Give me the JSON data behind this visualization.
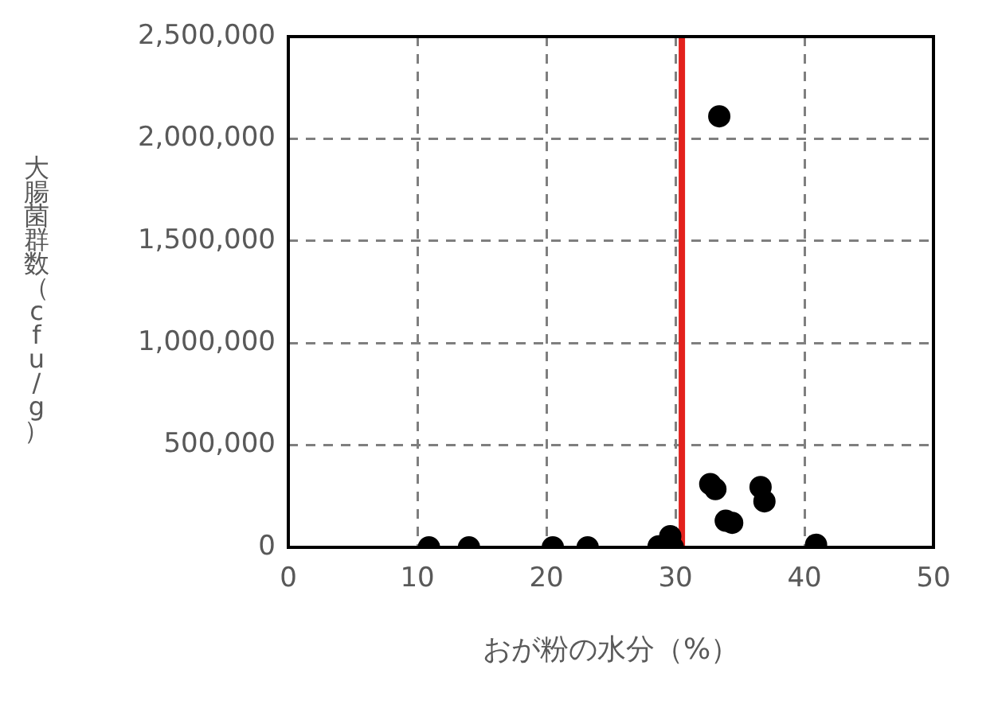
{
  "chart_data": {
    "type": "scatter",
    "xlabel": "おが粉の水分（%）",
    "ylabel": "大腸菌群数（cfu/g）",
    "x": [
      10.9,
      14.0,
      20.5,
      23.2,
      28.7,
      29.6,
      29.8,
      32.7,
      33.1,
      33.4,
      33.9,
      34.4,
      36.6,
      36.9,
      40.9
    ],
    "values": [
      0,
      0,
      0,
      0,
      5000,
      55000,
      0,
      310000,
      285000,
      2110000,
      130000,
      120000,
      295000,
      225000,
      13000
    ],
    "color": "#000000",
    "marker": "circle",
    "xlim": [
      0,
      50
    ],
    "xticks": [
      0,
      10,
      20,
      30,
      40,
      50
    ],
    "ylim": [
      0,
      2500000
    ],
    "yticks": [
      {
        "value": 0,
        "label": "0"
      },
      {
        "value": 500000,
        "label": "500,000"
      },
      {
        "value": 1000000,
        "label": "1,000,000"
      },
      {
        "value": 1500000,
        "label": "1,500,000"
      },
      {
        "value": 2000000,
        "label": "2,000,000"
      },
      {
        "value": 2500000,
        "label": "2,500,000"
      }
    ],
    "ref_lines": [
      {
        "axis": "x",
        "value": 30.5,
        "color": "#e3211c"
      }
    ],
    "grid": true,
    "legend": false
  }
}
